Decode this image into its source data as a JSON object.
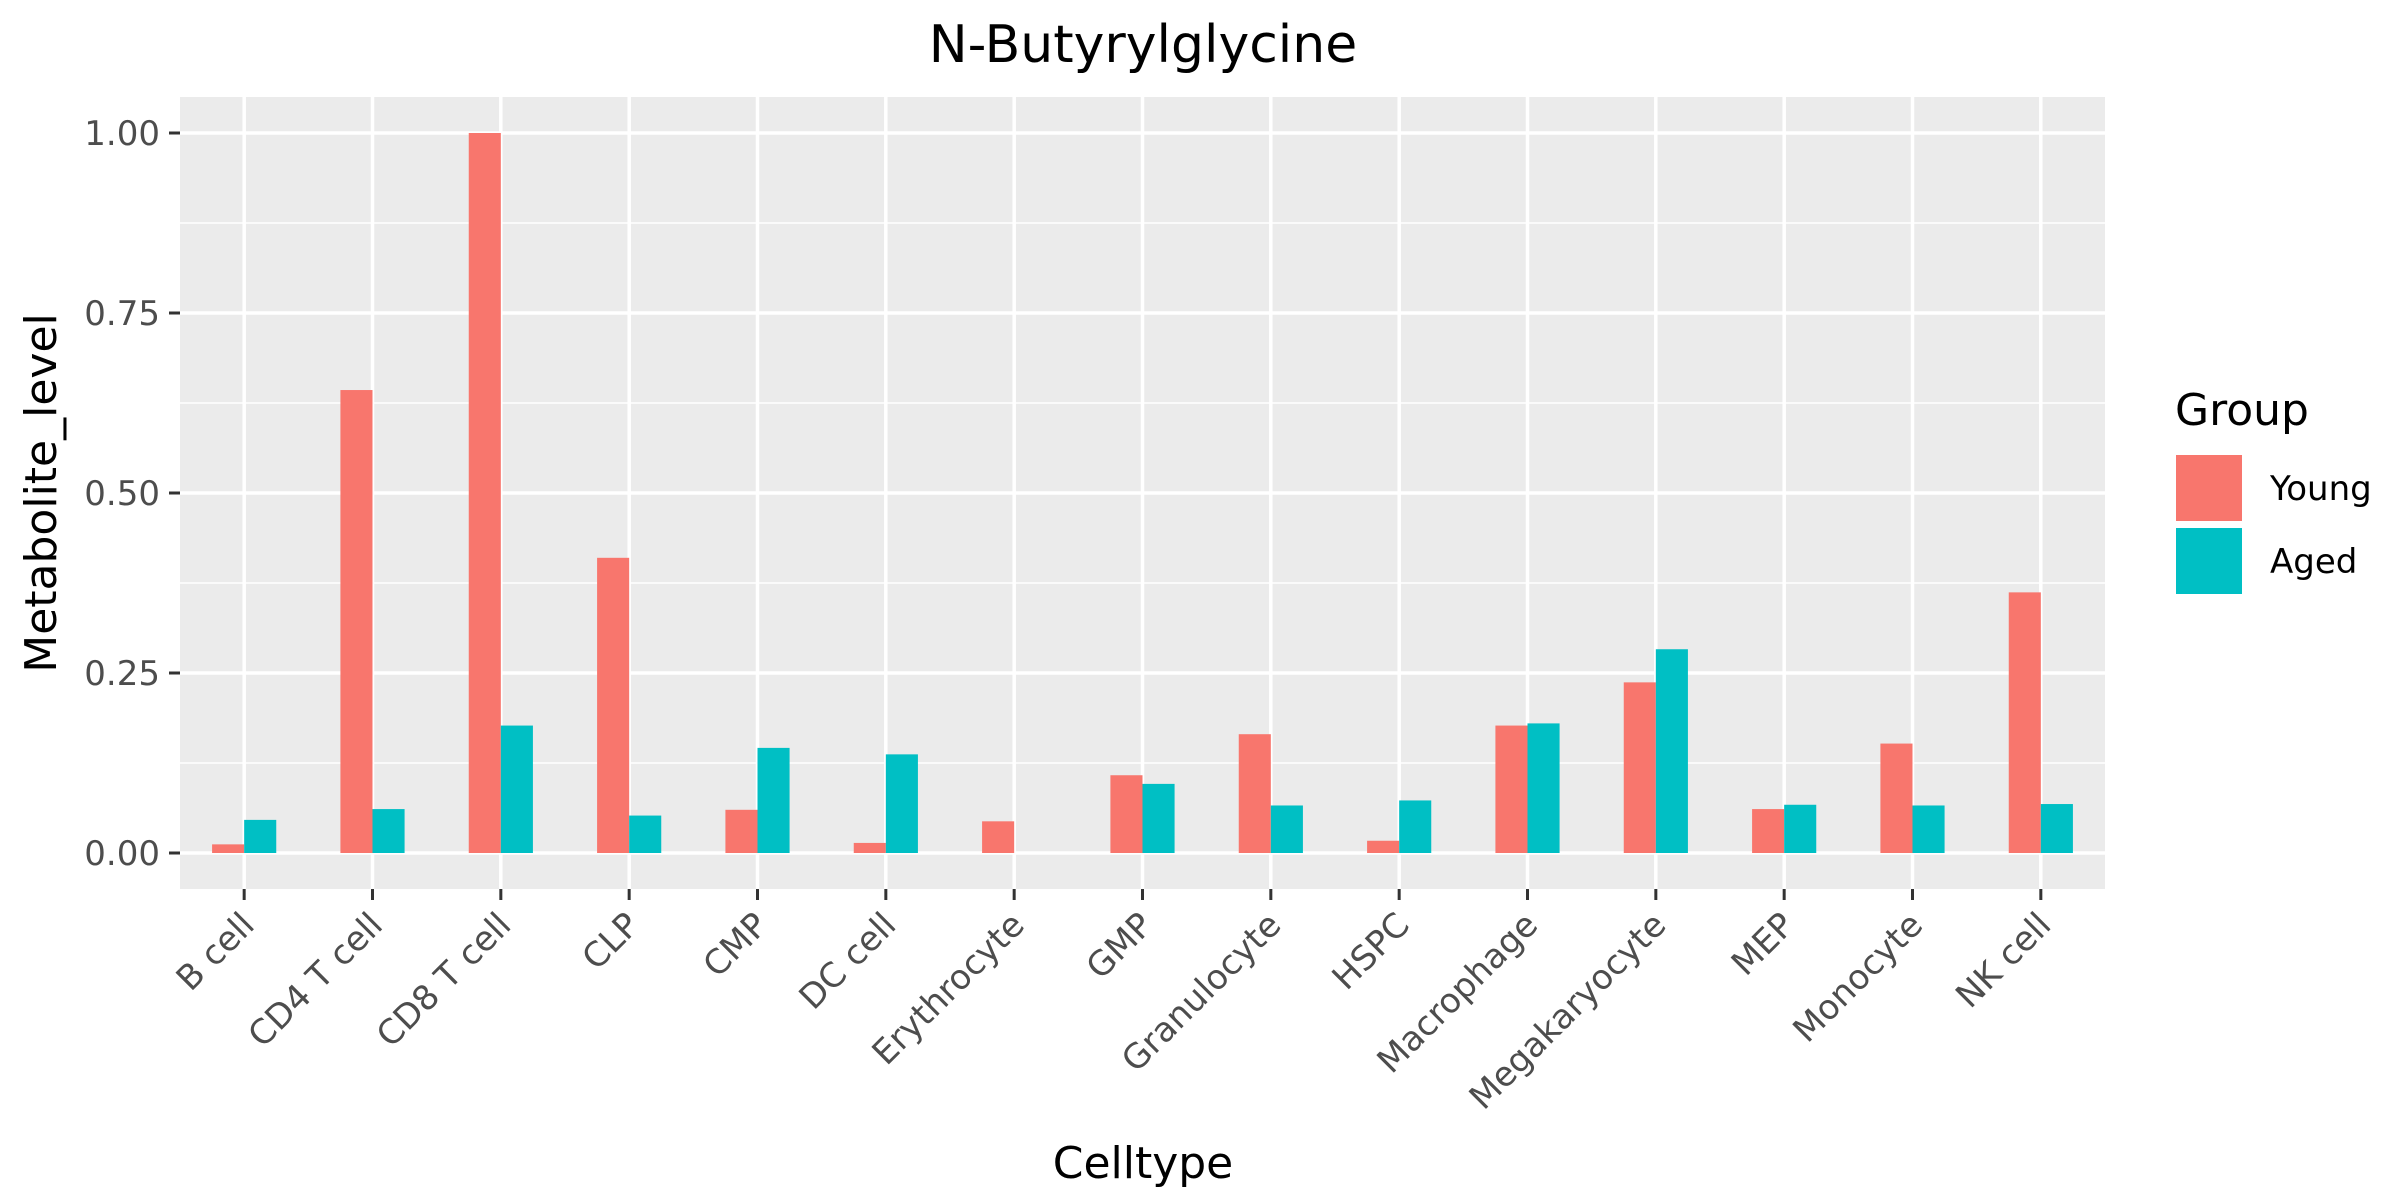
{
  "chart_data": {
    "type": "bar",
    "title": "N-Butyrylglycine",
    "xlabel": "Celltype",
    "ylabel": "Metabolite_level",
    "ylim": [
      -0.05,
      1.05
    ],
    "yticks": [
      0.0,
      0.25,
      0.5,
      0.75,
      1.0
    ],
    "ytick_labels": [
      "0.00",
      "0.25",
      "0.50",
      "0.75",
      "1.00"
    ],
    "grid": true,
    "categories": [
      "B cell",
      "CD4 T cell",
      "CD8 T cell",
      "CLP",
      "CMP",
      "DC cell",
      "Erythrocyte",
      "GMP",
      "Granulocyte",
      "HSPC",
      "Macrophage",
      "Megakaryocyte",
      "MEP",
      "Monocyte",
      "NK cell"
    ],
    "series": [
      {
        "name": "Young",
        "color": "#F8766D",
        "values": [
          0.012,
          0.643,
          1.0,
          0.41,
          0.06,
          0.014,
          0.044,
          0.108,
          0.165,
          0.017,
          0.177,
          0.237,
          0.061,
          0.152,
          0.362
        ]
      },
      {
        "name": "Aged",
        "color": "#00BFC4",
        "values": [
          0.046,
          0.061,
          0.177,
          0.052,
          0.146,
          0.137,
          null,
          0.096,
          0.066,
          0.073,
          0.18,
          0.283,
          0.067,
          0.066,
          0.068
        ]
      }
    ],
    "legend": {
      "title": "Group",
      "position": "right"
    }
  }
}
